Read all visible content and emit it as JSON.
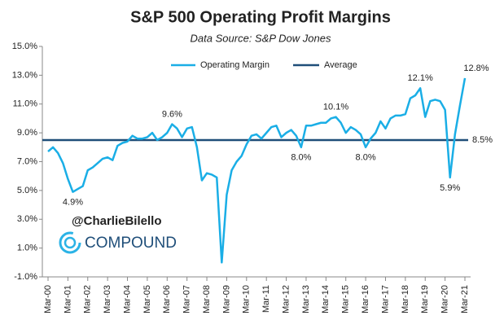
{
  "chart_data": {
    "type": "line",
    "title": "S&P 500 Operating Profit Margins",
    "subtitle": "Data Source: S&P Dow Jones",
    "categories": [
      "Mar-00",
      null,
      null,
      null,
      "Mar-01",
      null,
      null,
      null,
      "Mar-02",
      null,
      null,
      null,
      "Mar-03",
      null,
      null,
      null,
      "Mar-04",
      null,
      null,
      null,
      "Mar-05",
      null,
      null,
      null,
      "Mar-06",
      null,
      null,
      null,
      "Mar-07",
      null,
      null,
      null,
      "Mar-08",
      null,
      null,
      null,
      "Mar-09",
      null,
      null,
      null,
      "Mar-10",
      null,
      null,
      null,
      "Mar-11",
      null,
      null,
      null,
      "Mar-12",
      null,
      null,
      null,
      "Mar-13",
      null,
      null,
      null,
      "Mar-14",
      null,
      null,
      null,
      "Mar-15",
      null,
      null,
      null,
      "Mar-16",
      null,
      null,
      null,
      "Mar-17",
      null,
      null,
      null,
      "Mar-18",
      null,
      null,
      null,
      "Mar-19",
      null,
      null,
      null,
      "Mar-20",
      null,
      null,
      null,
      "Mar-21"
    ],
    "series": [
      {
        "name": "Operating Margin",
        "color": "#1aaee6",
        "values": [
          7.7,
          8.0,
          7.6,
          6.9,
          5.8,
          4.9,
          5.1,
          5.3,
          6.4,
          6.6,
          6.9,
          7.2,
          7.3,
          7.1,
          8.1,
          8.3,
          8.4,
          8.8,
          8.6,
          8.6,
          8.7,
          9.0,
          8.5,
          8.7,
          9.0,
          9.6,
          9.3,
          8.7,
          9.3,
          9.4,
          8.0,
          5.7,
          6.2,
          6.1,
          5.9,
          0.0,
          4.7,
          6.4,
          7.0,
          7.4,
          8.2,
          8.8,
          8.9,
          8.6,
          9.0,
          9.4,
          9.5,
          8.7,
          9.0,
          9.2,
          8.8,
          8.0,
          9.5,
          9.5,
          9.6,
          9.7,
          9.7,
          10.0,
          10.1,
          9.7,
          9.0,
          9.4,
          9.2,
          8.9,
          8.0,
          8.6,
          9.0,
          9.8,
          9.3,
          10.0,
          10.2,
          10.2,
          10.3,
          11.4,
          11.6,
          12.1,
          10.1,
          11.2,
          11.3,
          11.2,
          10.6,
          5.9,
          8.9,
          10.9,
          12.8
        ],
        "value_labels": [
          null,
          null,
          null,
          null,
          null,
          "4.9%",
          null,
          null,
          null,
          null,
          null,
          null,
          null,
          null,
          null,
          null,
          null,
          null,
          null,
          null,
          null,
          null,
          null,
          null,
          null,
          "9.6%",
          null,
          null,
          null,
          null,
          null,
          null,
          null,
          null,
          null,
          null,
          null,
          null,
          null,
          null,
          null,
          null,
          null,
          null,
          null,
          null,
          null,
          null,
          null,
          null,
          null,
          "8.0%",
          null,
          null,
          null,
          null,
          null,
          null,
          "10.1%",
          null,
          null,
          null,
          null,
          null,
          "8.0%",
          null,
          null,
          null,
          null,
          null,
          null,
          null,
          null,
          null,
          null,
          "12.1%",
          null,
          null,
          null,
          null,
          null,
          "5.9%",
          null,
          null,
          "12.8%"
        ]
      }
    ],
    "reference_lines": [
      {
        "name": "Average",
        "value": 8.5,
        "value_label": "8.5%",
        "color": "#1f4e79"
      }
    ],
    "ylim": [
      -1,
      15
    ],
    "yticks": [
      {
        "value": -1,
        "label": "-1.0%"
      },
      {
        "value": 1,
        "label": "1.0%"
      },
      {
        "value": 3,
        "label": "3.0%"
      },
      {
        "value": 5,
        "label": "5.0%"
      },
      {
        "value": 7,
        "label": "7.0%"
      },
      {
        "value": 9,
        "label": "9.0%"
      },
      {
        "value": 11,
        "label": "11.0%"
      },
      {
        "value": 13,
        "label": "13.0%"
      },
      {
        "value": 15,
        "label": "15.0%"
      }
    ],
    "grid": false,
    "watermark": {
      "handle": "@CharlieBilello",
      "brand": "COMPOUND"
    }
  }
}
